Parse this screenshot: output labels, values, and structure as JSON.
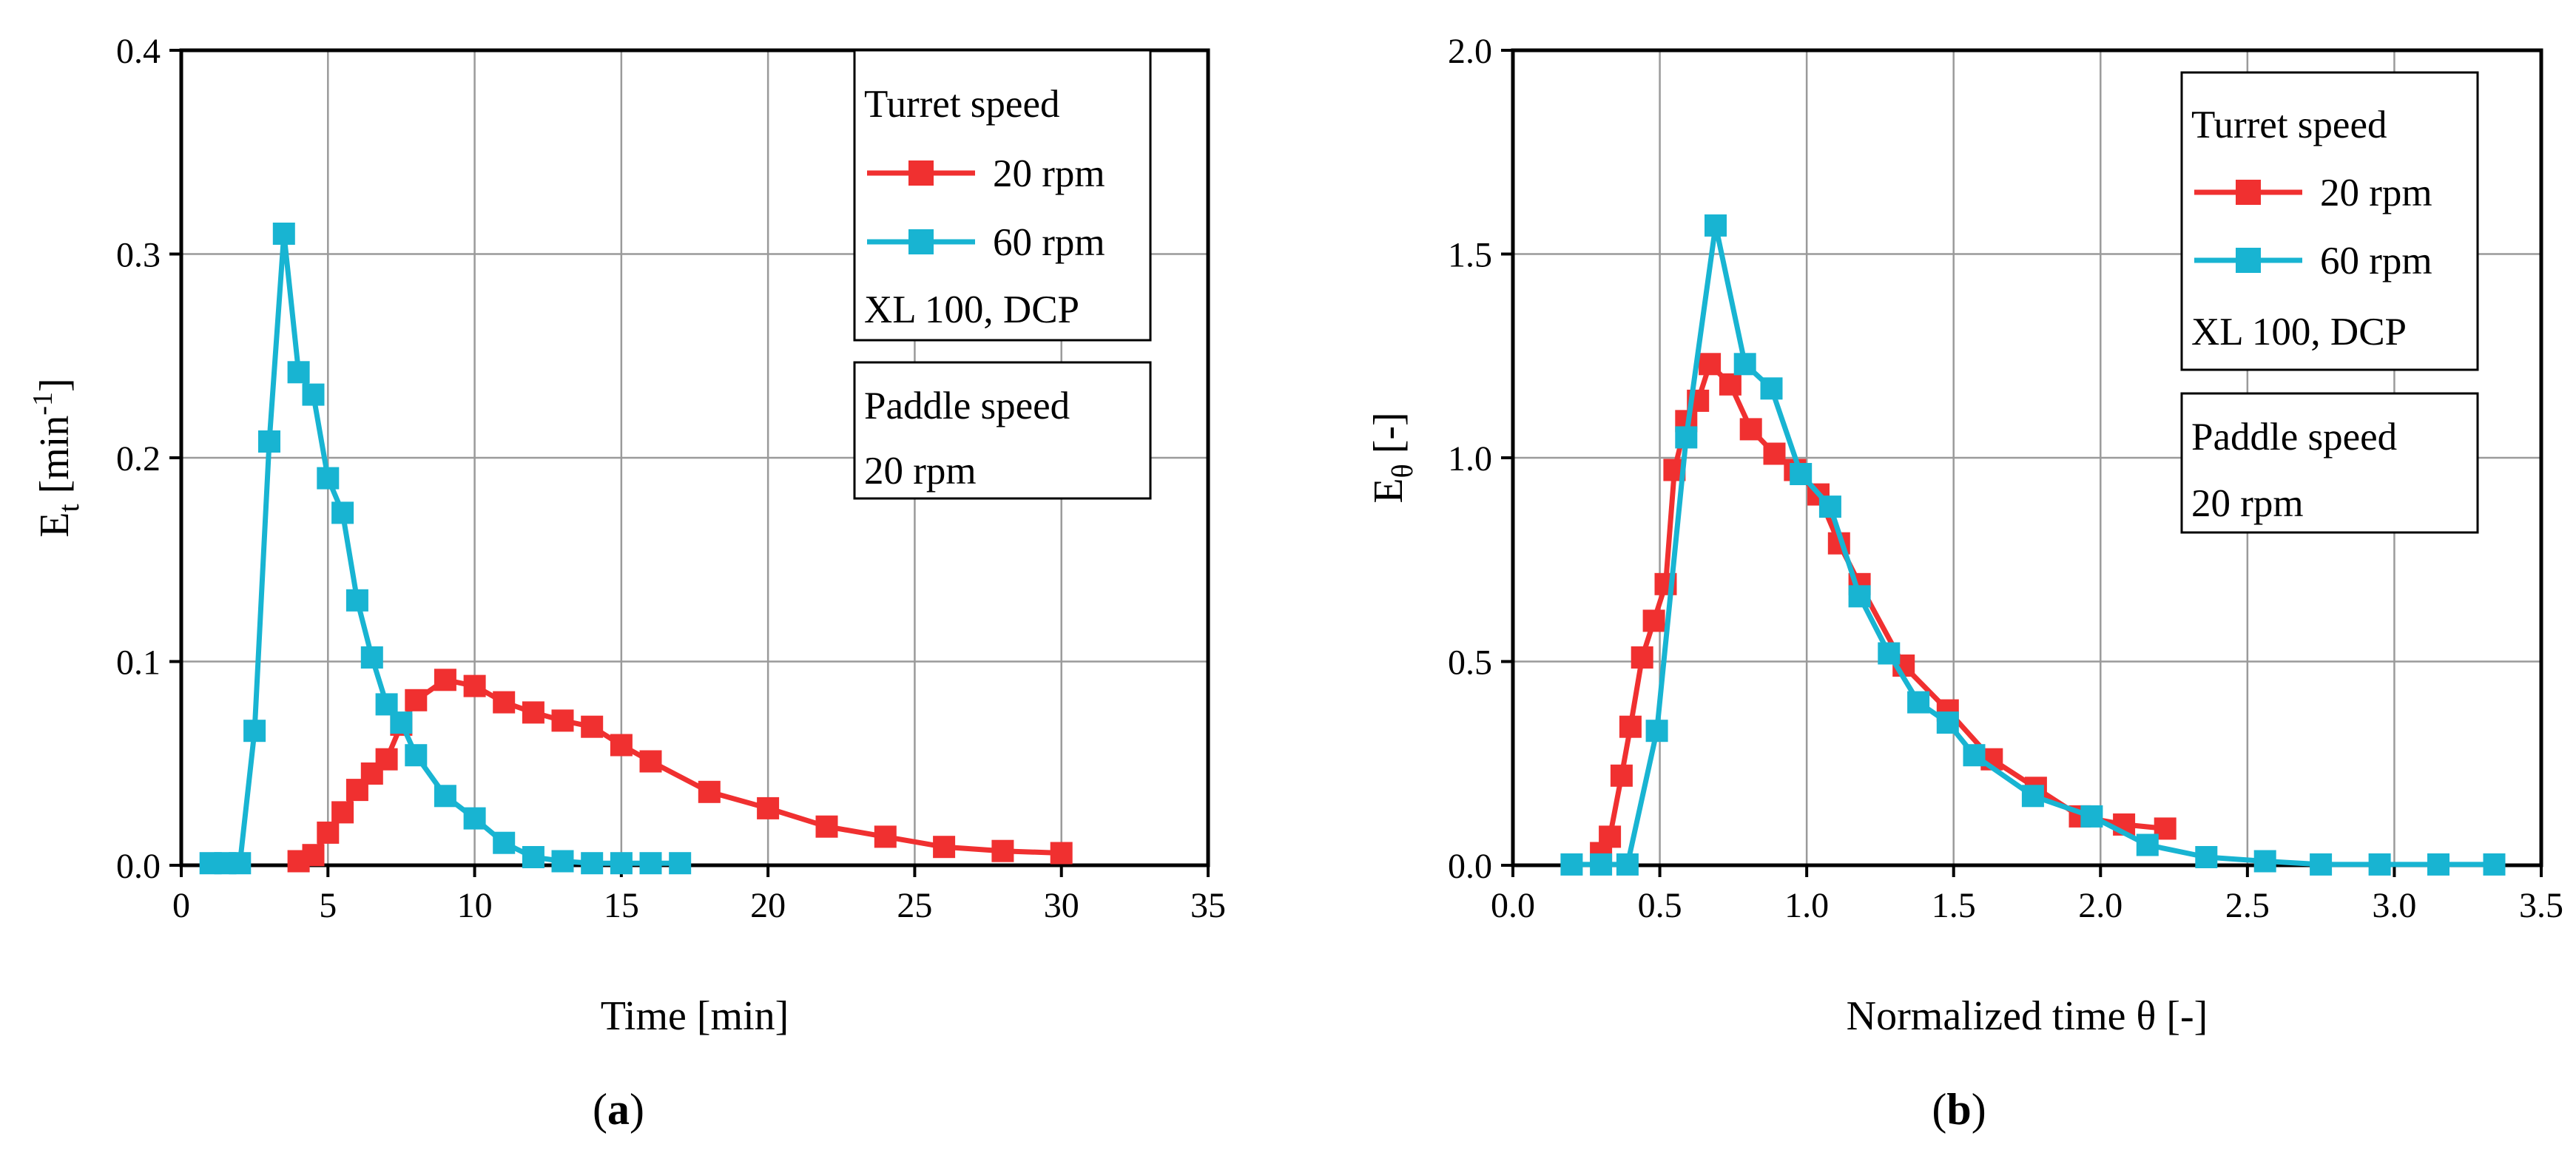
{
  "colors": {
    "series_20rpm": "#f03030",
    "series_60rpm": "#18b4d2",
    "grid": "#9a9a9a",
    "axis": "#000000"
  },
  "chart_data": [
    {
      "type": "line",
      "panel_label_open": "(",
      "panel_label_letter": "a",
      "panel_label_close": ")",
      "xlabel": "Time [min]",
      "ylabel_main": "E",
      "ylabel_sub": "t",
      "ylabel_unit_open": " [min",
      "ylabel_unit_sup": "-1",
      "ylabel_unit_close": "]",
      "xlim": [
        0,
        35
      ],
      "ylim": [
        0,
        0.4
      ],
      "xticks": [
        0,
        5,
        10,
        15,
        20,
        25,
        30,
        35
      ],
      "xtick_labels": [
        "0",
        "5",
        "10",
        "15",
        "20",
        "25",
        "30",
        "35"
      ],
      "yticks": [
        0,
        0.1,
        0.2,
        0.3,
        0.4
      ],
      "ytick_labels": [
        "0.0",
        "0.1",
        "0.2",
        "0.3",
        "0.4"
      ],
      "grid": true,
      "legend": {
        "title": "Turret speed",
        "entries": [
          "20 rpm",
          "60 rpm"
        ],
        "note": "XL 100, DCP",
        "note2_title": "Paddle speed",
        "note2_value": "20 rpm",
        "placement": "top-right"
      },
      "series": [
        {
          "name": "20 rpm",
          "x": [
            4,
            4.5,
            5,
            5.5,
            6,
            6.5,
            7,
            7.5,
            8,
            9,
            10,
            11,
            12,
            13,
            14,
            15,
            16,
            18,
            20,
            22,
            24,
            26,
            28,
            30
          ],
          "y": [
            0.002,
            0.005,
            0.016,
            0.026,
            0.037,
            0.045,
            0.052,
            0.069,
            0.081,
            0.091,
            0.088,
            0.08,
            0.075,
            0.071,
            0.068,
            0.059,
            0.051,
            0.036,
            0.028,
            0.019,
            0.014,
            0.009,
            0.007,
            0.006
          ]
        },
        {
          "name": "60 rpm",
          "x": [
            1,
            1.5,
            2,
            2.5,
            3,
            3.5,
            4,
            4.5,
            5,
            5.5,
            6,
            6.5,
            7,
            7.5,
            8,
            9,
            10,
            11,
            12,
            13,
            14,
            15,
            16,
            17
          ],
          "y": [
            0.001,
            0.001,
            0.001,
            0.066,
            0.208,
            0.31,
            0.242,
            0.231,
            0.19,
            0.173,
            0.13,
            0.102,
            0.079,
            0.07,
            0.054,
            0.034,
            0.023,
            0.011,
            0.004,
            0.002,
            0.001,
            0.001,
            0.001,
            0.001
          ]
        }
      ]
    },
    {
      "type": "line",
      "panel_label_open": "(",
      "panel_label_letter": "b",
      "panel_label_close": ")",
      "xlabel": "Normalized time θ [-]",
      "ylabel_main": "E",
      "ylabel_sub": "θ",
      "ylabel_unit_open": " [-]",
      "ylabel_unit_sup": "",
      "ylabel_unit_close": "",
      "xlim": [
        0,
        3.5
      ],
      "ylim": [
        0,
        2.0
      ],
      "xticks": [
        0,
        0.5,
        1,
        1.5,
        2,
        2.5,
        3,
        3.5
      ],
      "xtick_labels": [
        "0.0",
        "0.5",
        "1.0",
        "1.5",
        "2.0",
        "2.5",
        "3.0",
        "3.5"
      ],
      "yticks": [
        0,
        0.5,
        1,
        1.5,
        2
      ],
      "ytick_labels": [
        "0.0",
        "0.5",
        "1.0",
        "1.5",
        "2.0"
      ],
      "grid": true,
      "legend": {
        "title": "Turret speed",
        "entries": [
          "20 rpm",
          "60 rpm"
        ],
        "note": "XL 100, DCP",
        "note2_title": "Paddle speed",
        "note2_value": "20 rpm",
        "placement": "top-right"
      },
      "series": [
        {
          "name": "20 rpm",
          "x": [
            0.3,
            0.33,
            0.37,
            0.4,
            0.44,
            0.48,
            0.52,
            0.55,
            0.59,
            0.63,
            0.67,
            0.74,
            0.81,
            0.89,
            0.96,
            1.04,
            1.11,
            1.18,
            1.33,
            1.48,
            1.63,
            1.78,
            1.93,
            2.08,
            2.22
          ],
          "y": [
            0.03,
            0.07,
            0.22,
            0.34,
            0.51,
            0.6,
            0.69,
            0.97,
            1.09,
            1.14,
            1.23,
            1.18,
            1.07,
            1.01,
            0.97,
            0.91,
            0.79,
            0.69,
            0.49,
            0.38,
            0.26,
            0.19,
            0.12,
            0.1,
            0.09
          ]
        },
        {
          "name": "60 rpm",
          "x": [
            0.2,
            0.3,
            0.39,
            0.49,
            0.59,
            0.69,
            0.79,
            0.88,
            0.98,
            1.08,
            1.18,
            1.28,
            1.38,
            1.48,
            1.57,
            1.77,
            1.97,
            2.16,
            2.36,
            2.56,
            2.75,
            2.95,
            3.15,
            3.34
          ],
          "y": [
            0.002,
            0.002,
            0.002,
            0.33,
            1.05,
            1.57,
            1.23,
            1.17,
            0.96,
            0.88,
            0.66,
            0.52,
            0.4,
            0.35,
            0.27,
            0.17,
            0.12,
            0.05,
            0.02,
            0.01,
            0.002,
            0.002,
            0.002,
            0.002
          ]
        }
      ]
    }
  ]
}
